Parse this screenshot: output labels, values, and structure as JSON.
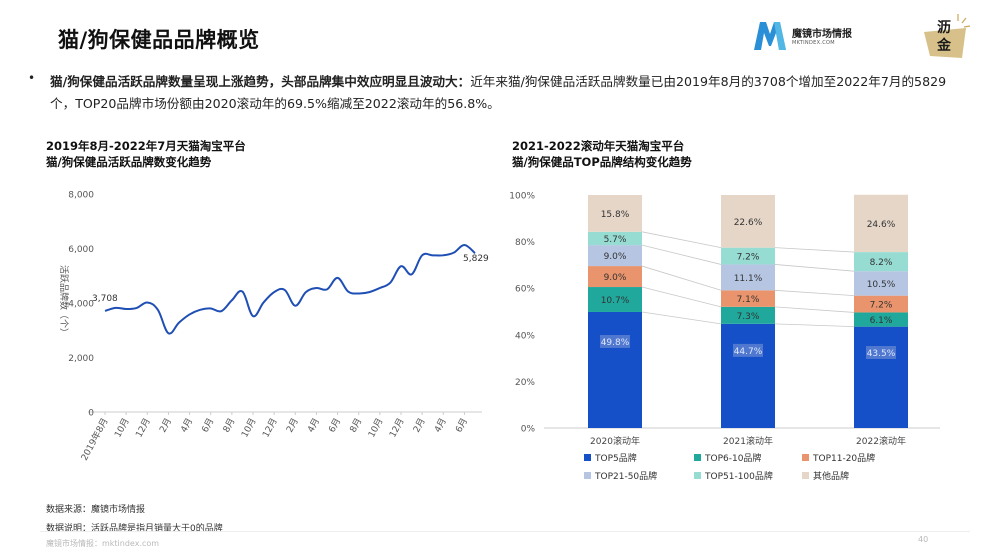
{
  "header": {
    "title": "猫/狗保健品品牌概览",
    "logo_name": "魔镜市场情报",
    "logo_sub": "MKTINDEX.COM",
    "badge_text": "沥金"
  },
  "summary": {
    "bullet": "•",
    "bold": "猫/狗保健品活跃品牌数量呈现上涨趋势，头部品牌集中效应明显且波动大：",
    "text": "近年来猫/狗保健品活跃品牌数量已由2019年8月的3708个增加至2022年7月的5829个，TOP20品牌市场份额由2020滚动年的69.5%缩减至2022滚动年的56.8%。"
  },
  "chart_data": [
    {
      "type": "line",
      "title_line1": "2019年8月-2022年7月天猫淘宝平台",
      "title_line2": "猫/狗保健品活跃品牌数变化趋势",
      "ylabel": "活跃品牌数（个）",
      "ylim": [
        0,
        8000
      ],
      "yticks": [
        "0",
        "2,000",
        "4,000",
        "6,000",
        "8,000"
      ],
      "ytick_values": [
        0,
        2000,
        4000,
        6000,
        8000
      ],
      "x_tick_labels": [
        "2019年8月",
        "10月",
        "12月",
        "2月",
        "4月",
        "6月",
        "8月",
        "10月",
        "12月",
        "2月",
        "4月",
        "6月",
        "8月",
        "10月",
        "12月",
        "2月",
        "4月",
        "6月"
      ],
      "values": [
        3708,
        3820,
        3780,
        3820,
        4020,
        3750,
        2890,
        3280,
        3580,
        3750,
        3800,
        3700,
        4100,
        4420,
        3520,
        4020,
        4400,
        4480,
        3900,
        4400,
        4550,
        4500,
        4920,
        4420,
        4350,
        4400,
        4550,
        4750,
        5350,
        5050,
        5750,
        5750,
        5750,
        5850,
        6130,
        5829
      ],
      "annotations": [
        {
          "index": 0,
          "label": "3,708"
        },
        {
          "index": 35,
          "label": "5,829"
        }
      ],
      "grid": false,
      "color": "#1f4fb4"
    },
    {
      "type": "bar",
      "stacked": true,
      "title_line1": "2021-2022滚动年天猫淘宝平台",
      "title_line2": "猫/狗保健品TOP品牌结构变化趋势",
      "categories": [
        "2020滚动年",
        "2021滚动年",
        "2022滚动年"
      ],
      "yticks": [
        "0%",
        "20%",
        "40%",
        "60%",
        "80%",
        "100%"
      ],
      "ytick_values": [
        0,
        20,
        40,
        60,
        80,
        100
      ],
      "series": [
        {
          "name": "TOP5品牌",
          "values": [
            49.8,
            44.7,
            43.5
          ],
          "labels": [
            "49.8%",
            "44.7%",
            "43.5%"
          ],
          "color": "#1550c8"
        },
        {
          "name": "TOP6-10品牌",
          "values": [
            10.7,
            7.3,
            6.1
          ],
          "labels": [
            "10.7%",
            "7.3%",
            "6.1%"
          ],
          "color": "#20a89c"
        },
        {
          "name": "TOP11-20品牌",
          "values": [
            9.0,
            7.1,
            7.2
          ],
          "labels": [
            "9.0%",
            "7.1%",
            "7.2%"
          ],
          "color": "#e9946c"
        },
        {
          "name": "TOP21-50品牌",
          "values": [
            9.0,
            11.1,
            10.5
          ],
          "labels": [
            "9.0%",
            "11.1%",
            "10.5%"
          ],
          "color": "#b6c6e2"
        },
        {
          "name": "TOP51-100品牌",
          "values": [
            5.7,
            7.2,
            8.2
          ],
          "labels": [
            "5.7%",
            "7.2%",
            "8.2%"
          ],
          "color": "#97dcd3"
        },
        {
          "name": "其他品牌",
          "values": [
            15.8,
            22.6,
            24.6
          ],
          "labels": [
            "15.8%",
            "22.6%",
            "24.6%"
          ],
          "color": "#e6d6c8"
        }
      ],
      "legend_position": "bottom"
    }
  ],
  "footer": {
    "source": "数据来源：魔镜市场情报",
    "note": "数据说明：活跃品牌是指月销量大于0的品牌",
    "site": "魔镜市场情报：mktindex.com",
    "page": "40"
  }
}
